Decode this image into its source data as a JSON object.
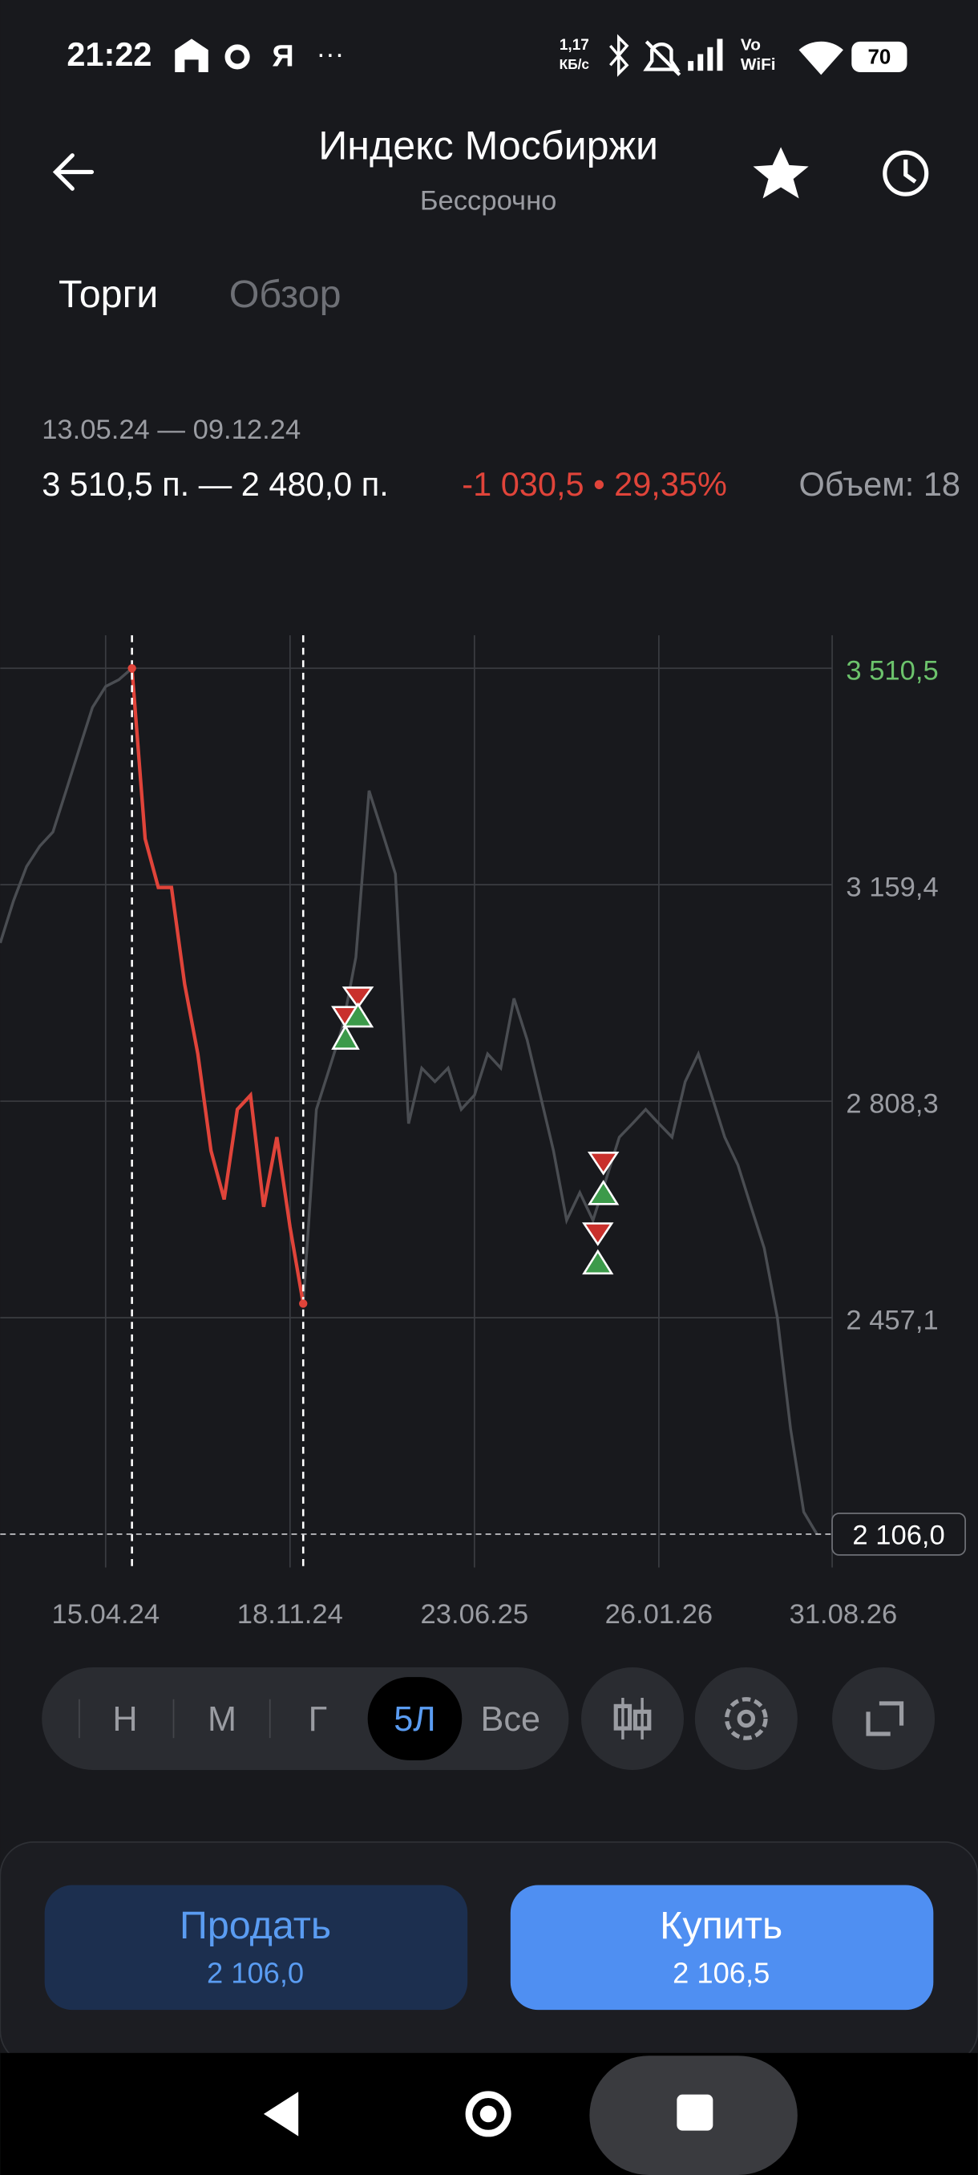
{
  "status_bar": {
    "time": "21:22",
    "speed": "1,17",
    "speed_unit": "КБ/с",
    "network": "Vo",
    "network2": "WiFi",
    "battery": "70"
  },
  "header": {
    "title": "Индекс Мосбиржи",
    "subtitle": "Бессрочно"
  },
  "tabs": [
    "Торги",
    "Обзор"
  ],
  "summary": {
    "range": "13.05.24 — 09.12.24",
    "price_range": "3 510,5 п. — 2 480,0 п.",
    "change": "-1 030,5 • 29,35%",
    "volume": "Объем: 18"
  },
  "chart_data": {
    "type": "line",
    "categories": [
      null,
      null,
      null,
      null,
      null,
      null,
      null,
      null,
      "15.04.24",
      null,
      null,
      null,
      null,
      null,
      null,
      null,
      null,
      null,
      null,
      null,
      null,
      null,
      "18.11.24",
      null,
      null,
      null,
      null,
      null,
      null,
      null,
      null,
      null,
      null,
      null,
      null,
      null,
      "23.06.25",
      null,
      null,
      null,
      null,
      null,
      null,
      null,
      null,
      null,
      null,
      null,
      null,
      null,
      "26.01.26",
      null,
      null,
      null,
      null,
      null,
      null,
      null,
      null,
      null,
      null,
      null,
      null,
      null,
      "31.08.26"
    ],
    "series": [
      {
        "color": "#4a4d52",
        "values": [
          3065,
          3133,
          3189,
          3222,
          3245,
          3312,
          3380,
          3447,
          3481,
          3492,
          3510.5,
          3234,
          3155,
          3155,
          2998,
          2885,
          2728,
          2649,
          2795,
          2818,
          2637,
          2750,
          2604,
          2480,
          2795,
          2862,
          2930,
          3042,
          3312,
          3245,
          3177,
          2772,
          2862,
          2840,
          2862,
          2795,
          2818,
          2885,
          2862,
          2975,
          2908,
          2818,
          2728,
          2615,
          2660,
          2615,
          2682,
          2750,
          2772,
          2795,
          2772,
          2750,
          2840,
          2885,
          2818,
          2750,
          2705,
          2637,
          2570,
          2457,
          2277,
          2142,
          2106,
          null,
          null
        ]
      },
      {
        "color": "#e0443a",
        "values": [
          null,
          null,
          null,
          null,
          null,
          null,
          null,
          null,
          null,
          null,
          3510.5,
          3234,
          3155,
          3155,
          2998,
          2885,
          2728,
          2649,
          2795,
          2818,
          2637,
          2750,
          2604,
          2480,
          null,
          null,
          null,
          null,
          null,
          null,
          null,
          null,
          null,
          null,
          null,
          null,
          null,
          null,
          null,
          null,
          null,
          null,
          null,
          null,
          null,
          null,
          null,
          null,
          null,
          null,
          null,
          null,
          null,
          null,
          null,
          null,
          null,
          null,
          null,
          null,
          null,
          null,
          null,
          null,
          null
        ]
      }
    ],
    "ylim": [
      2052,
      3564
    ],
    "yticks": [
      {
        "value": 3510.5,
        "label": "3 510,5"
      },
      {
        "value": 3159.4,
        "label": "3 159,4"
      },
      {
        "value": 2808.3,
        "label": "2 808,3"
      },
      {
        "value": 2457.1,
        "label": "2 457,1"
      }
    ],
    "current_price": {
      "value": 2106,
      "label": "2 106,0"
    },
    "grid": true
  },
  "periods": [
    "Н",
    "М",
    "Г",
    "5Л",
    "Все"
  ],
  "selected_period": 3,
  "sell": {
    "label": "Продать",
    "price": "2 106,0"
  },
  "buy": {
    "label": "Купить",
    "price": "2 106,5"
  }
}
